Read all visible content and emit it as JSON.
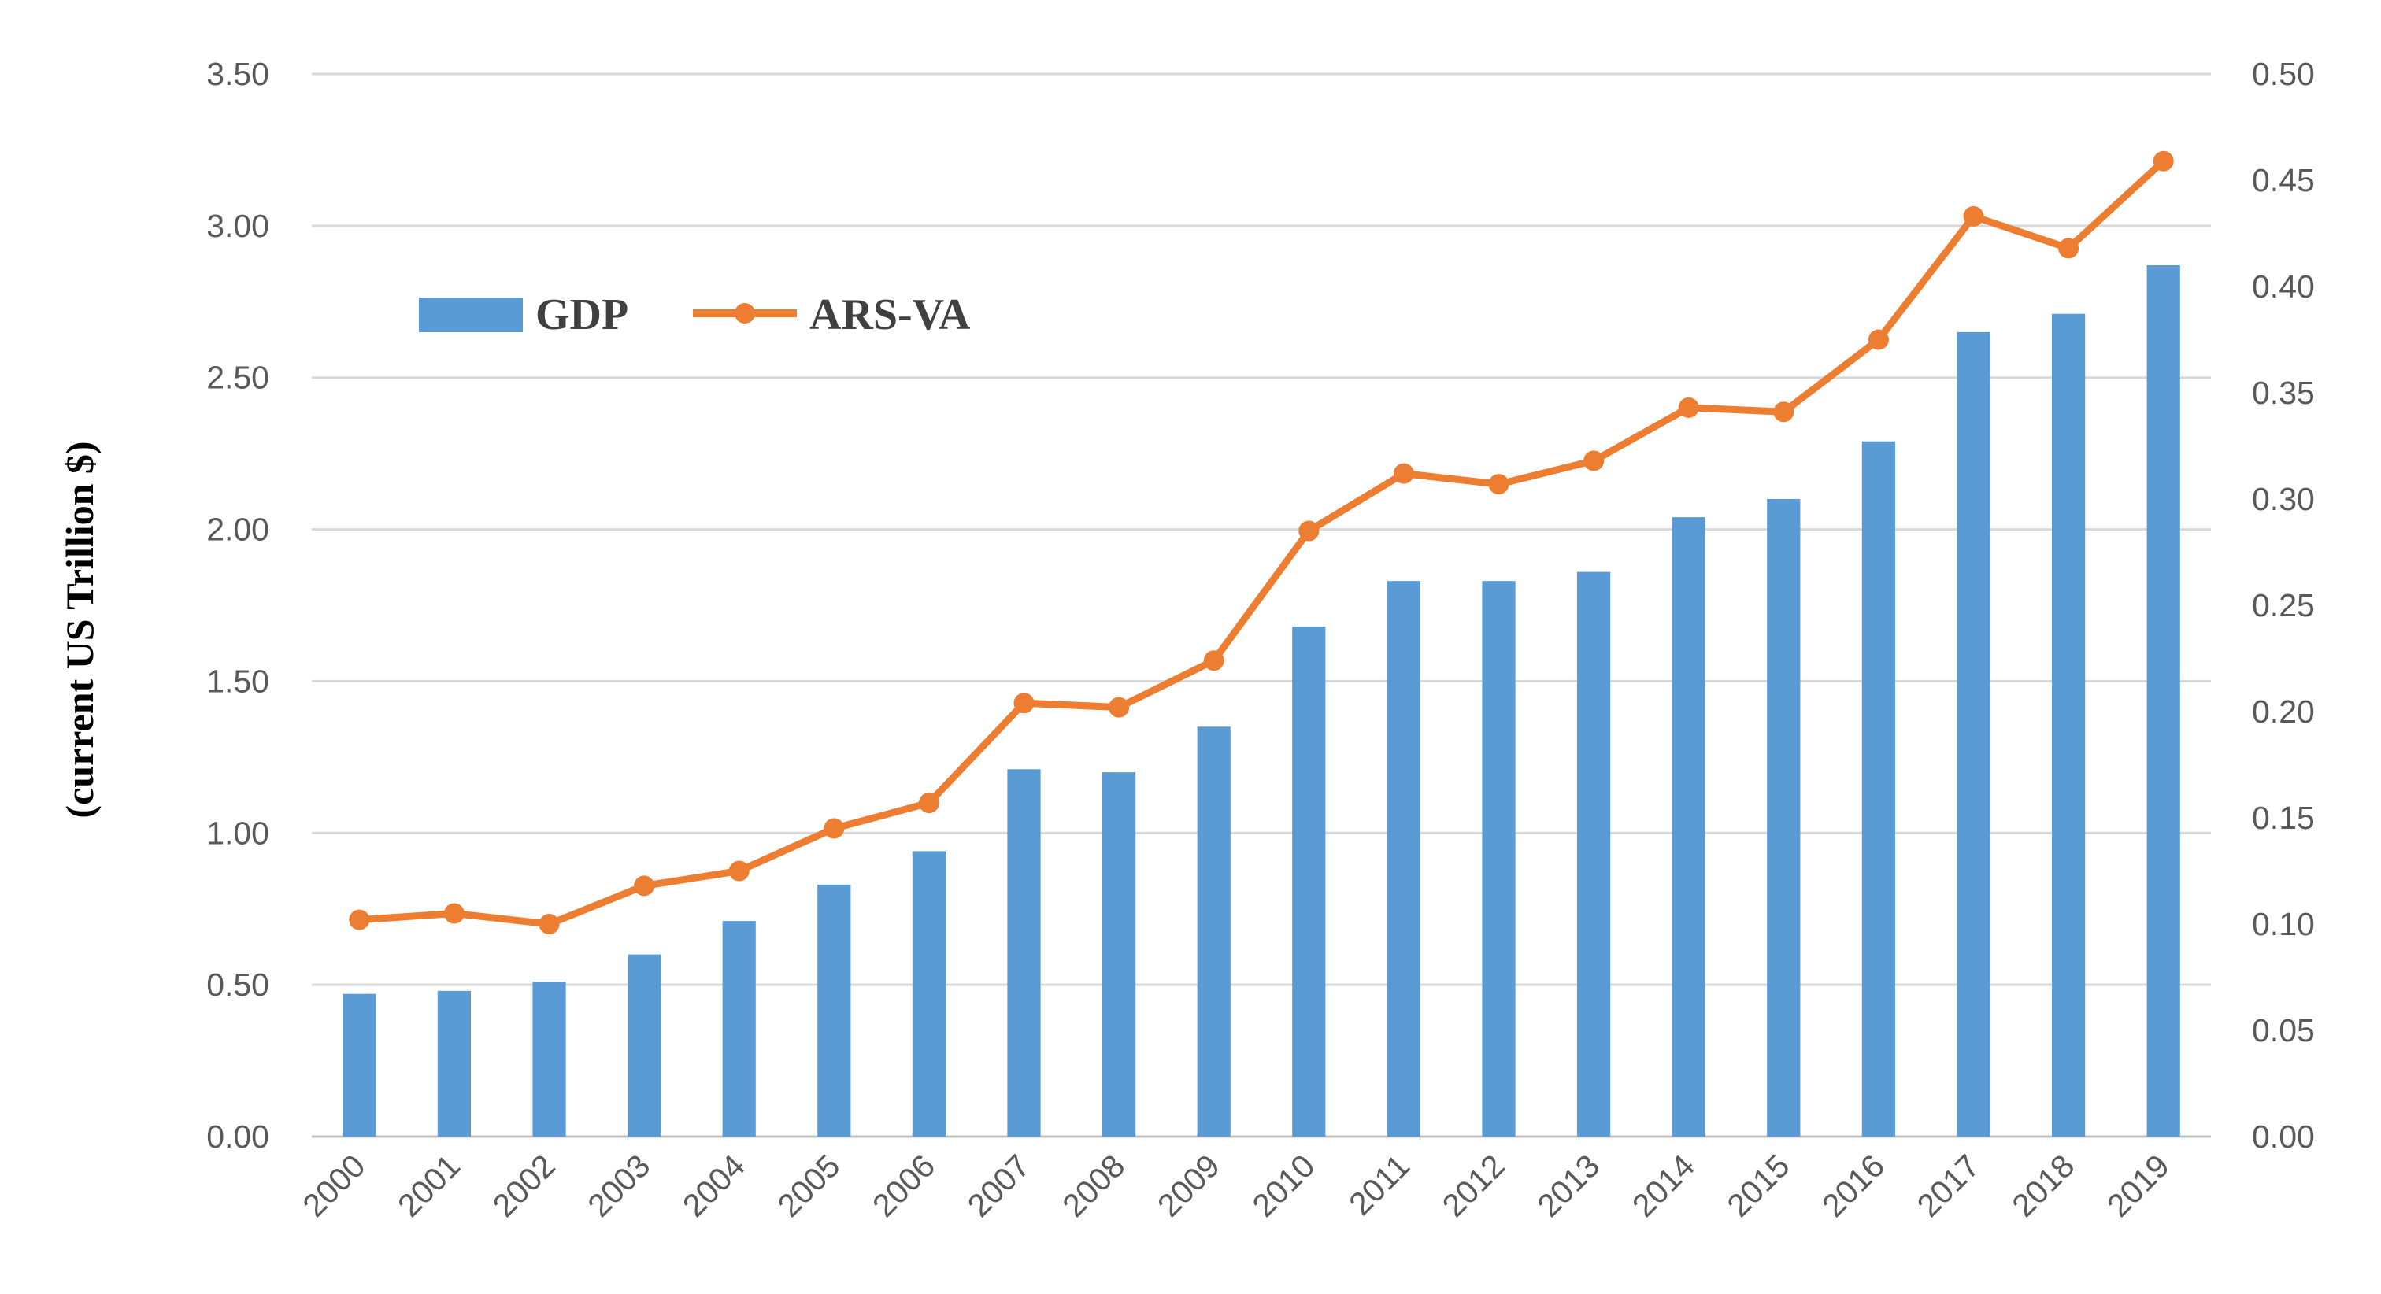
{
  "chart_data": {
    "type": "bar+line",
    "title": "",
    "ylabel": "(current US Trillion $)",
    "ylabel_right": "",
    "categories": [
      "2000",
      "2001",
      "2002",
      "2003",
      "2004",
      "2005",
      "2006",
      "2007",
      "2008",
      "2009",
      "2010",
      "2011",
      "2012",
      "2013",
      "2014",
      "2015",
      "2016",
      "2017",
      "2018",
      "2019"
    ],
    "y_left": {
      "min": 0,
      "max": 3.5,
      "ticks": [
        "0.00",
        "0.50",
        "1.00",
        "1.50",
        "2.00",
        "2.50",
        "3.00",
        "3.50"
      ]
    },
    "y_right": {
      "min": 0,
      "max": 0.5,
      "ticks": [
        "0.00",
        "0.05",
        "0.10",
        "0.15",
        "0.20",
        "0.25",
        "0.30",
        "0.35",
        "0.40",
        "0.45",
        "0.50"
      ]
    },
    "grid": true,
    "legend_position": "top-left",
    "series": [
      {
        "name": "GDP",
        "type": "bar",
        "axis": "left",
        "color": "#5B9BD5",
        "values": [
          0.47,
          0.48,
          0.51,
          0.6,
          0.71,
          0.83,
          0.94,
          1.21,
          1.2,
          1.35,
          1.68,
          1.83,
          1.83,
          1.86,
          2.04,
          2.1,
          2.29,
          2.65,
          2.71,
          2.87
        ]
      },
      {
        "name": "ARS-VA",
        "type": "line",
        "axis": "right",
        "color": "#ED7D31",
        "values": [
          0.102,
          0.105,
          0.1,
          0.118,
          0.125,
          0.145,
          0.157,
          0.204,
          0.202,
          0.224,
          0.285,
          0.312,
          0.307,
          0.318,
          0.343,
          0.341,
          0.375,
          0.433,
          0.418,
          0.459
        ]
      }
    ]
  }
}
